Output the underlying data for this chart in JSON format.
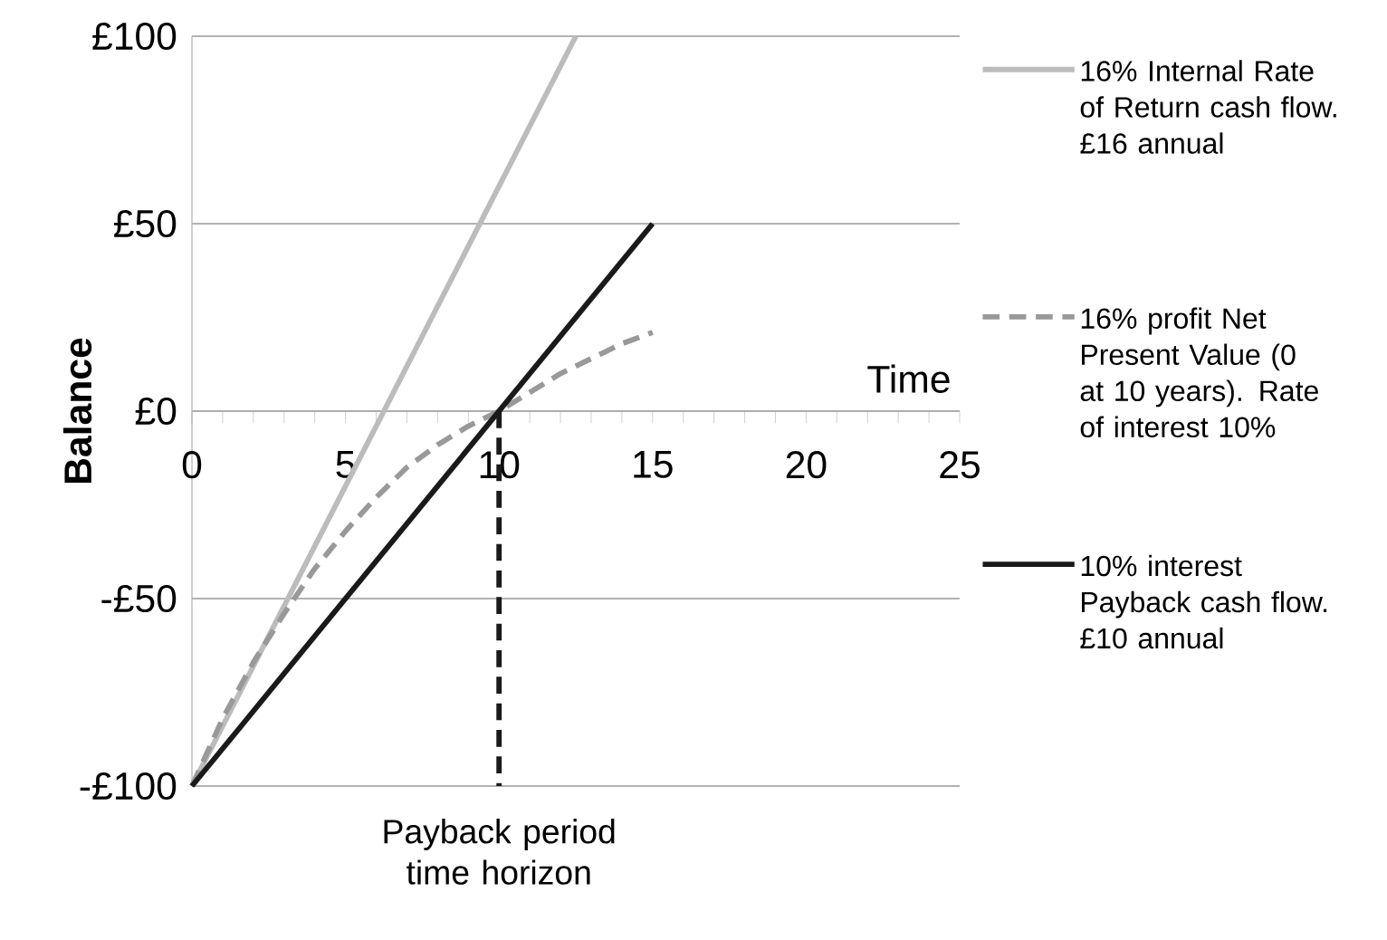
{
  "chart_data": {
    "type": "line",
    "xlabel": "Time",
    "ylabel": "Balance",
    "xlim": [
      0,
      25
    ],
    "xticks": [
      0,
      5,
      10,
      15,
      20,
      25
    ],
    "ylim": [
      -100,
      100
    ],
    "yticks": [
      {
        "value": -100,
        "label": "-£100"
      },
      {
        "value": -50,
        "label": "-£50"
      },
      {
        "value": 0,
        "label": "£0"
      },
      {
        "value": 50,
        "label": "£50"
      },
      {
        "value": 100,
        "label": "£100"
      }
    ],
    "grid": "y",
    "legend": "right",
    "series": [
      {
        "name": "16% Internal Rate of Return cash flow. £16 annual",
        "color": "#bcbcbc",
        "line_style": "solid",
        "x": [
          0,
          12.5
        ],
        "values": [
          -100,
          100
        ]
      },
      {
        "name": "16% profit Net Present Value (0 at 10 years). Rate of interest 10%",
        "color": "#999999",
        "line_style": "dashed",
        "x": [
          0,
          1,
          2,
          3,
          4,
          5,
          6,
          7,
          8,
          9,
          10,
          11,
          12,
          13,
          14,
          15
        ],
        "values": [
          -100,
          -82,
          -67,
          -54,
          -42,
          -32,
          -23,
          -15,
          -9,
          -4,
          0,
          5,
          10,
          14,
          18,
          21
        ]
      },
      {
        "name": "10% interest Payback cash flow. £10 annual",
        "color": "#1a1a1a",
        "line_style": "solid",
        "x": [
          0,
          15
        ],
        "values": [
          -100,
          50
        ]
      },
      {
        "color": "#1a1a1a",
        "line_style": "dashed",
        "x": [
          10,
          10
        ],
        "values": [
          0,
          -100
        ]
      }
    ],
    "annotations": [
      {
        "text": "Payback period time horizon",
        "x": 10,
        "y": -100
      }
    ]
  }
}
